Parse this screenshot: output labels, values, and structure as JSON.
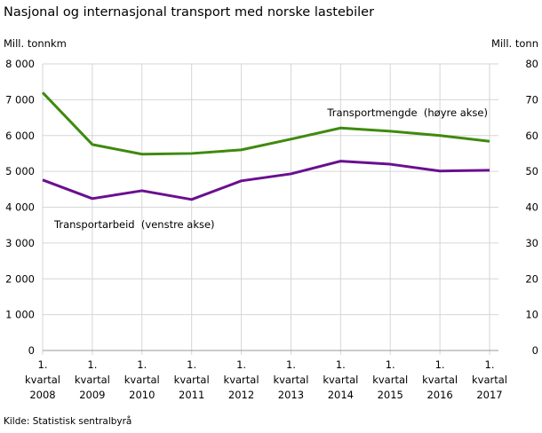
{
  "chart_data": {
    "type": "line",
    "title": "Nasjonal og internasjonal transport med norske lastebiler",
    "source": "Kilde: Statistisk sentralbyrå",
    "left_axis": {
      "label": "Mill. tonnkm",
      "ylim": [
        0,
        8000
      ],
      "ticks": [
        "0",
        "1 000",
        "2 000",
        "3 000",
        "4 000",
        "5 000",
        "6 000",
        "7 000",
        "8 000"
      ]
    },
    "right_axis": {
      "label": "Mill. tonn",
      "ylim": [
        0,
        80
      ],
      "ticks": [
        "0",
        "10",
        "20",
        "30",
        "40",
        "50",
        "60",
        "70",
        "80"
      ]
    },
    "categories": [
      [
        "1.",
        "kvartal",
        "2008"
      ],
      [
        "1.",
        "kvartal",
        "2009"
      ],
      [
        "1.",
        "kvartal",
        "2010"
      ],
      [
        "1.",
        "kvartal",
        "2011"
      ],
      [
        "1.",
        "kvartal",
        "2012"
      ],
      [
        "1.",
        "kvartal",
        "2013"
      ],
      [
        "1.",
        "kvartal",
        "2014"
      ],
      [
        "1.",
        "kvartal",
        "2015"
      ],
      [
        "1.",
        "kvartal",
        "2016"
      ],
      [
        "1.",
        "kvartal",
        "2017"
      ]
    ],
    "grid": true,
    "series": [
      {
        "name": "Transportmengde  (høyre akse)",
        "axis": "right",
        "color": "#3f8a0e",
        "values": [
          72.0,
          57.5,
          54.8,
          55.0,
          56.0,
          59.0,
          62.1,
          61.2,
          60.0,
          58.4
        ]
      },
      {
        "name": "Transportarbeid  (venstre akse)",
        "axis": "left",
        "color": "#6a0f8e",
        "values": [
          4760,
          4240,
          4460,
          4215,
          4735,
          4930,
          5285,
          5200,
          5010,
          5030
        ]
      }
    ]
  }
}
